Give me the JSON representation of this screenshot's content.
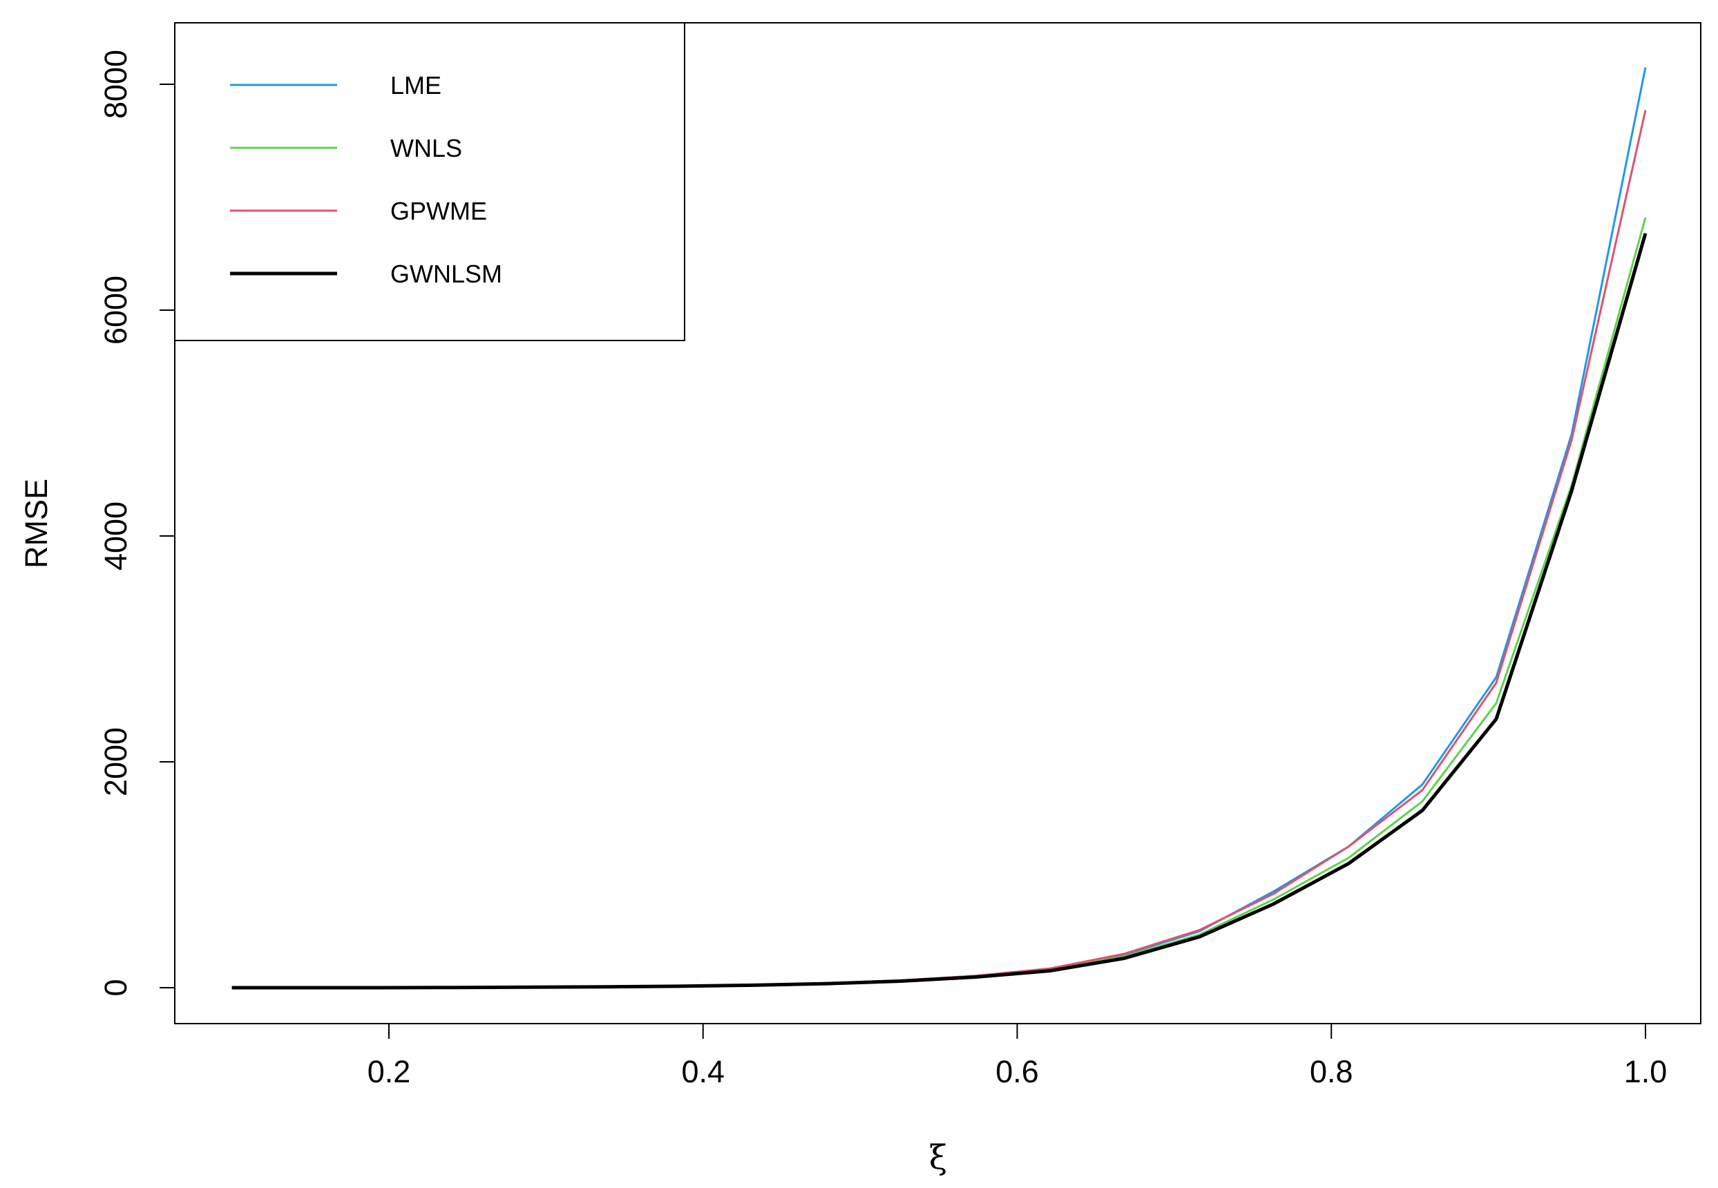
{
  "chart_data": {
    "type": "line",
    "title": "",
    "xlabel": "ξ",
    "ylabel": "RMSE",
    "xlim": [
      0.1,
      1.0
    ],
    "ylim": [
      0,
      8000
    ],
    "x_ticks": [
      0.2,
      0.4,
      0.6,
      0.8,
      1.0
    ],
    "x_tick_labels": [
      "0.2",
      "0.4",
      "0.6",
      "0.8",
      "1.0"
    ],
    "y_ticks": [
      0,
      2000,
      4000,
      6000,
      8000
    ],
    "y_tick_labels": [
      "0",
      "2000",
      "4000",
      "6000",
      "8000"
    ],
    "grid": false,
    "legend_position": "top-left",
    "x": [
      0.1,
      0.147,
      0.195,
      0.242,
      0.289,
      0.337,
      0.384,
      0.432,
      0.479,
      0.526,
      0.574,
      0.621,
      0.668,
      0.716,
      0.763,
      0.811,
      0.858,
      0.905,
      0.953,
      1.0
    ],
    "series": [
      {
        "name": "LME",
        "color": "#2297E6",
        "values": [
          0,
          0,
          0,
          2,
          4,
          8,
          14,
          24,
          40,
          65,
          105,
          170,
          290,
          500,
          850,
          1250,
          1800,
          2750,
          4900,
          8150
        ]
      },
      {
        "name": "WNLS",
        "color": "#61D04F",
        "values": [
          0,
          0,
          0,
          2,
          4,
          8,
          14,
          23,
          38,
          62,
          100,
          160,
          275,
          470,
          780,
          1150,
          1650,
          2520,
          4450,
          6820
        ]
      },
      {
        "name": "GPWME",
        "color": "#DF536B",
        "values": [
          0,
          0,
          0,
          2,
          4,
          8,
          14,
          24,
          40,
          65,
          105,
          170,
          300,
          510,
          830,
          1250,
          1750,
          2700,
          4850,
          7770
        ]
      },
      {
        "name": "GWNLSM",
        "color": "#000000",
        "values": [
          0,
          0,
          0,
          2,
          4,
          8,
          13,
          22,
          36,
          58,
          95,
          150,
          260,
          450,
          740,
          1100,
          1570,
          2380,
          4400,
          6680
        ]
      }
    ]
  }
}
